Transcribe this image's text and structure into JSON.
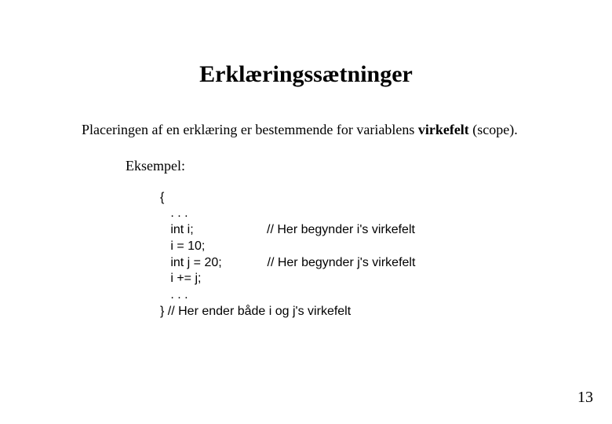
{
  "title": "Erklæringssætninger",
  "intro_prefix": "Placeringen af en erklæring er bestemmende for variablens ",
  "intro_bold": "virkefelt",
  "intro_suffix": " (scope).",
  "example_label": "Eksempel:",
  "code_text": "{\n   . . .\n   int i;                     // Her begynder i's virkefelt\n   i = 10;\n   int j = 20;             // Her begynder j's virkefelt\n   i += j;\n   . . .\n} // Her ender både i og j's virkefelt",
  "page_number": "13"
}
